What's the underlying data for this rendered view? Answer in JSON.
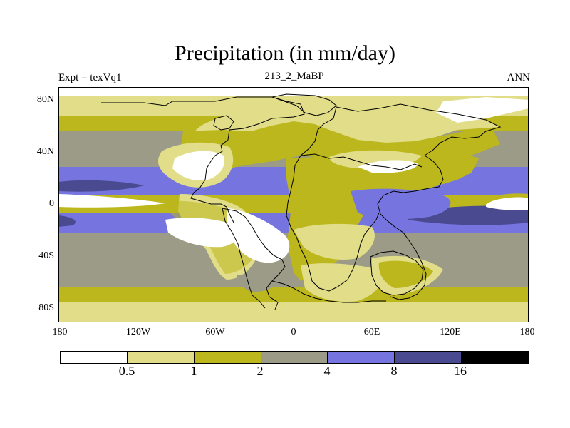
{
  "title": "Precipitation (in mm/day)",
  "expt_label": "Expt = texVq1",
  "center_label": "213_2_MaBP",
  "season_label": "ANN",
  "lat_ticks": [
    "80N",
    "40N",
    "0",
    "40S",
    "80S"
  ],
  "lon_ticks": [
    "180",
    "120W",
    "60W",
    "0",
    "60E",
    "120E",
    "180"
  ],
  "colorbar": {
    "colors": [
      "#ffffff",
      "#e1dd88",
      "#bcb71d",
      "#9b9b88",
      "#7675e0",
      "#4a4a90",
      "#000000"
    ],
    "labels": [
      "0.5",
      "1",
      "2",
      "4",
      "8",
      "16"
    ]
  },
  "palette": {
    "white": "#ffffff",
    "pale_yellow": "#e1dd88",
    "olive": "#bcb71d",
    "gray": "#9b9b88",
    "blue": "#7675e0",
    "dark_blue": "#4a4a90",
    "coast": "#000000"
  }
}
